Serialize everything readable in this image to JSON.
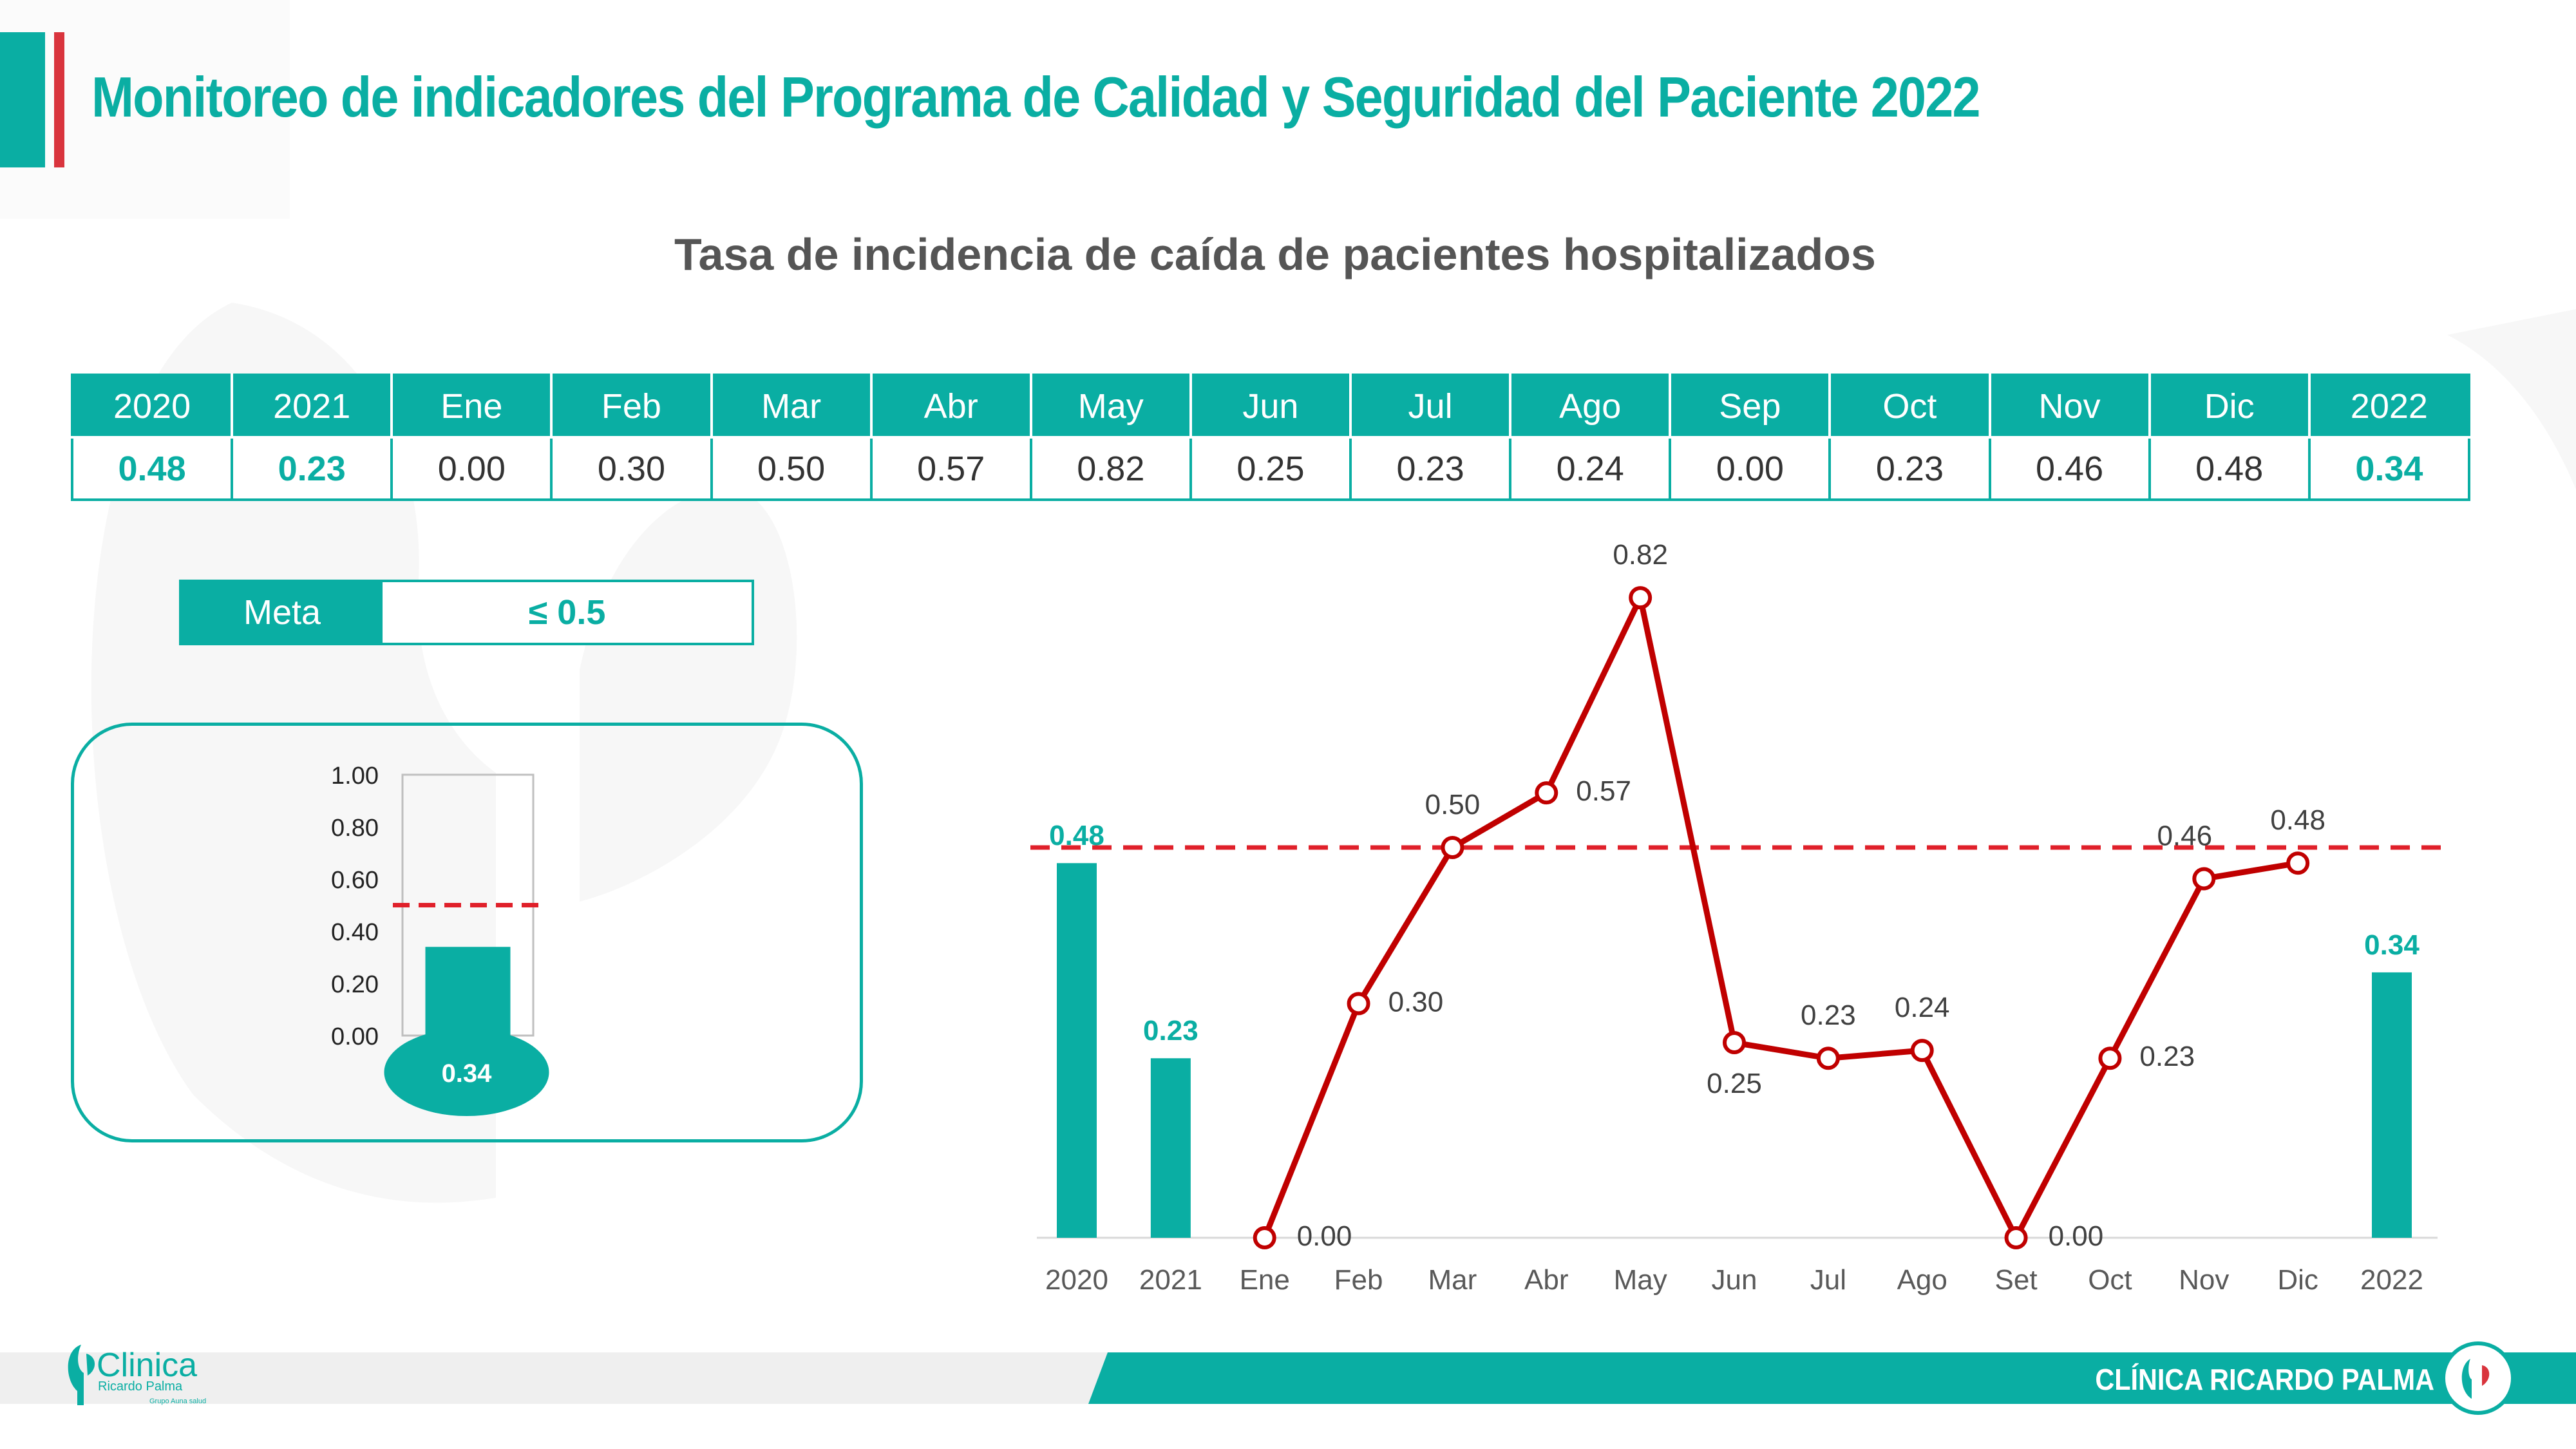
{
  "header": {
    "title": "Monitoreo de indicadores del Programa de Calidad y Seguridad del Paciente 2022"
  },
  "table": {
    "headers": [
      "2020",
      "2021",
      "Ene",
      "Feb",
      "Mar",
      "Abr",
      "May",
      "Jun",
      "Jul",
      "Ago",
      "Sep",
      "Oct",
      "Nov",
      "Dic",
      "2022"
    ],
    "values": [
      "0.48",
      "0.23",
      "0.00",
      "0.30",
      "0.50",
      "0.57",
      "0.82",
      "0.25",
      "0.23",
      "0.24",
      "0.00",
      "0.23",
      "0.46",
      "0.48",
      "0.34"
    ]
  },
  "meta": {
    "label": "Meta",
    "value": "≤ 0.5"
  },
  "gauge_chart": {
    "type": "bar",
    "value": 0.34,
    "value_label": "0.34",
    "goal": 0.5,
    "ylim": [
      0,
      1
    ],
    "yticks": [
      "1.00",
      "0.80",
      "0.60",
      "0.40",
      "0.20",
      "0.00"
    ]
  },
  "chart_data": {
    "type": "bar+line",
    "title": "Tasa de incidencia de caída de pacientes hospitalizados",
    "categories": [
      "2020",
      "2021",
      "Ene",
      "Feb",
      "Mar",
      "Abr",
      "May",
      "Jun",
      "Jul",
      "Ago",
      "Set",
      "Oct",
      "Nov",
      "Dic",
      "2022"
    ],
    "bars": [
      {
        "category": "2020",
        "value": 0.48,
        "label": "0.48"
      },
      {
        "category": "2021",
        "value": 0.23,
        "label": "0.23"
      },
      {
        "category": "2022",
        "value": 0.34,
        "label": "0.34"
      }
    ],
    "line": {
      "categories": [
        "Ene",
        "Feb",
        "Mar",
        "Abr",
        "May",
        "Jun",
        "Jul",
        "Ago",
        "Set",
        "Oct",
        "Nov",
        "Dic"
      ],
      "values": [
        0.0,
        0.3,
        0.5,
        0.57,
        0.82,
        0.25,
        0.23,
        0.24,
        0.0,
        0.23,
        0.46,
        0.48
      ],
      "labels": [
        "0.00",
        "0.30",
        "0.50",
        "0.57",
        "0.82",
        "0.25",
        "0.23",
        "0.24",
        "0.00",
        "0.23",
        "0.46",
        "0.48"
      ]
    },
    "goal_line": 0.5,
    "colors": {
      "bar": "#0aaea3",
      "line": "#c00000",
      "goal": "#e0202a"
    },
    "grid": false,
    "legend": "none"
  },
  "footer": {
    "brand": "CLÍNICA RICARDO PALMA"
  },
  "logo": {
    "name": "Clinica",
    "subtitle": "Ricardo Palma",
    "tagline": "Grupo Auna salud"
  },
  "colors": {
    "accent": "#0aaea3",
    "red": "#d9343d"
  }
}
